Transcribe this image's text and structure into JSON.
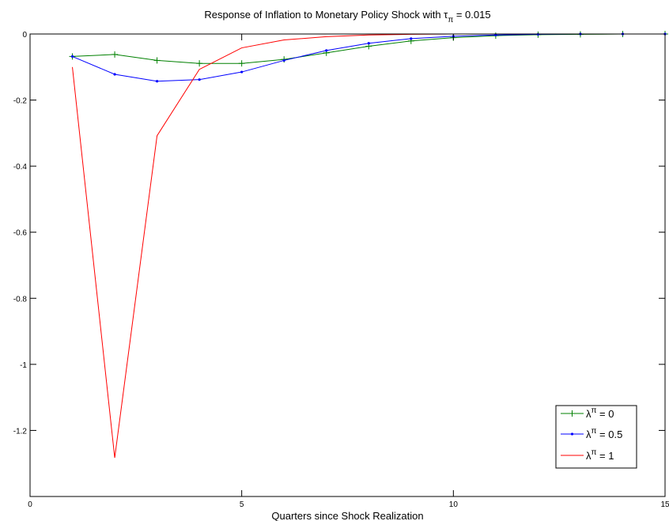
{
  "chart_data": {
    "type": "line",
    "title": {
      "main": "Response of Inflation to Monetary Policy Shock with τ",
      "subscript": "π",
      "suffix": " = 0.015"
    },
    "xlabel": "Quarters since Shock Realization",
    "ylabel": "",
    "xlim": [
      0,
      15
    ],
    "ylim": [
      -1.4,
      0
    ],
    "xticks": [
      0,
      5,
      10,
      15
    ],
    "yticks": [
      0,
      -0.2,
      -0.4,
      -0.6,
      -0.8,
      -1,
      -1.2
    ],
    "grid": false,
    "legend_position": "bottom-right",
    "series": [
      {
        "legend": {
          "symbol": "λ",
          "superscript": "π",
          "suffix": " = 0"
        },
        "color": "#008000",
        "marker": "plus",
        "x": [
          1,
          2,
          3,
          4,
          5,
          6,
          7,
          8,
          9,
          10,
          11,
          12,
          13,
          14,
          15
        ],
        "y": [
          -0.068,
          -0.062,
          -0.08,
          -0.089,
          -0.089,
          -0.077,
          -0.057,
          -0.037,
          -0.021,
          -0.011,
          -0.005,
          -0.002,
          -0.001,
          0.0,
          0.0
        ]
      },
      {
        "legend": {
          "symbol": "λ",
          "superscript": "π",
          "suffix": " = 0.5"
        },
        "color": "#0000ff",
        "marker": "dot",
        "x": [
          1,
          2,
          3,
          4,
          5,
          6,
          7,
          8,
          9,
          10,
          11,
          12,
          13,
          14,
          15
        ],
        "y": [
          -0.068,
          -0.122,
          -0.143,
          -0.138,
          -0.115,
          -0.08,
          -0.05,
          -0.028,
          -0.014,
          -0.007,
          -0.003,
          -0.001,
          0.0,
          0.0,
          0.0
        ]
      },
      {
        "legend": {
          "symbol": "λ",
          "superscript": "π",
          "suffix": " = 1"
        },
        "color": "#ff0000",
        "marker": "none",
        "x": [
          1,
          2,
          3,
          4,
          5,
          6,
          7,
          8,
          9,
          10,
          11,
          12,
          13,
          14,
          15
        ],
        "y": [
          -0.1,
          -1.283,
          -0.308,
          -0.107,
          -0.042,
          -0.018,
          -0.008,
          -0.003,
          -0.001,
          0.0,
          0.0,
          0.0,
          0.0,
          0.0,
          0.0
        ]
      }
    ]
  }
}
